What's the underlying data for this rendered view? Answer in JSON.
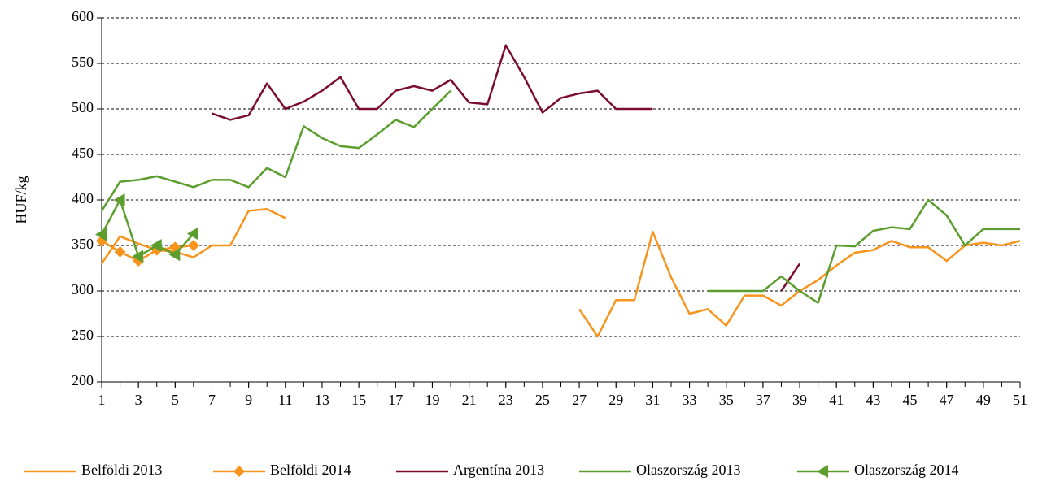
{
  "chart_data": {
    "type": "line",
    "y_label": "HUF/kg",
    "x": [
      1,
      2,
      3,
      4,
      5,
      6,
      7,
      8,
      9,
      10,
      11,
      12,
      13,
      14,
      15,
      16,
      17,
      18,
      19,
      20,
      21,
      22,
      23,
      24,
      25,
      26,
      27,
      28,
      29,
      30,
      31,
      32,
      33,
      34,
      35,
      36,
      37,
      38,
      39,
      40,
      41,
      42,
      43,
      44,
      45,
      46,
      47,
      48,
      49,
      50,
      51
    ],
    "xlim": [
      1,
      51
    ],
    "xticks": [
      1,
      3,
      5,
      7,
      9,
      11,
      13,
      15,
      17,
      19,
      21,
      23,
      25,
      27,
      29,
      31,
      33,
      35,
      37,
      39,
      41,
      43,
      45,
      47,
      49,
      51
    ],
    "ylim": [
      200,
      600
    ],
    "yticks": [
      200,
      250,
      300,
      350,
      400,
      450,
      500,
      550,
      600
    ],
    "grid": true,
    "legend": "bottom",
    "series": [
      {
        "name": "Belföldi 2013",
        "color": "#f7941d",
        "values": [
          330,
          360,
          352,
          345,
          343,
          337,
          350,
          350,
          388,
          390,
          380,
          null,
          null,
          null,
          null,
          null,
          null,
          null,
          null,
          null,
          null,
          null,
          null,
          null,
          null,
          null,
          280,
          250,
          290,
          290,
          365,
          315,
          275,
          280,
          262,
          295,
          295,
          284,
          300,
          312,
          328,
          342,
          345,
          355,
          348,
          348,
          333,
          350,
          353,
          350,
          355
        ]
      },
      {
        "name": "Belföldi 2014",
        "color": "#f7941d",
        "marker": "diamond",
        "values": [
          355,
          343,
          333,
          345,
          348,
          350,
          null,
          null,
          null,
          null,
          null,
          null,
          null,
          null,
          null,
          null,
          null,
          null,
          null,
          null,
          null,
          null,
          null,
          null,
          null,
          null,
          null,
          null,
          null,
          null,
          null,
          null,
          null,
          null,
          null,
          null,
          null,
          null,
          null,
          null,
          null,
          null,
          null,
          null,
          null,
          null,
          null,
          null,
          null,
          null,
          null
        ]
      },
      {
        "name": "Argentína 2013",
        "color": "#7b0d2e",
        "values": [
          null,
          null,
          null,
          null,
          null,
          null,
          495,
          488,
          493,
          528,
          500,
          508,
          520,
          535,
          500,
          500,
          520,
          525,
          520,
          532,
          507,
          505,
          570,
          535,
          496,
          512,
          517,
          520,
          500,
          500,
          500,
          null,
          null,
          null,
          null,
          null,
          null,
          300,
          330,
          null,
          null,
          null,
          null,
          null,
          null,
          null,
          null,
          null,
          null,
          null,
          null
        ]
      },
      {
        "name": "Olaszország 2013",
        "color": "#5c9e2e",
        "values": [
          388,
          420,
          422,
          426,
          420,
          414,
          422,
          422,
          414,
          435,
          425,
          481,
          468,
          459,
          457,
          472,
          488,
          480,
          500,
          520,
          null,
          null,
          null,
          null,
          null,
          null,
          null,
          null,
          null,
          null,
          null,
          null,
          null,
          300,
          300,
          300,
          300,
          316,
          300,
          287,
          350,
          349,
          366,
          370,
          368,
          400,
          383,
          350,
          368,
          368,
          368
        ]
      },
      {
        "name": "Olaszország 2014",
        "color": "#5c9e2e",
        "marker": "triangle-left",
        "values": [
          362,
          400,
          338,
          350,
          340,
          363,
          null,
          null,
          null,
          null,
          null,
          null,
          null,
          null,
          null,
          null,
          null,
          null,
          null,
          null,
          null,
          null,
          null,
          null,
          null,
          null,
          null,
          null,
          null,
          null,
          null,
          null,
          null,
          null,
          null,
          null,
          null,
          null,
          null,
          null,
          null,
          null,
          null,
          null,
          null,
          null,
          null,
          null,
          null,
          null,
          null
        ]
      }
    ]
  }
}
